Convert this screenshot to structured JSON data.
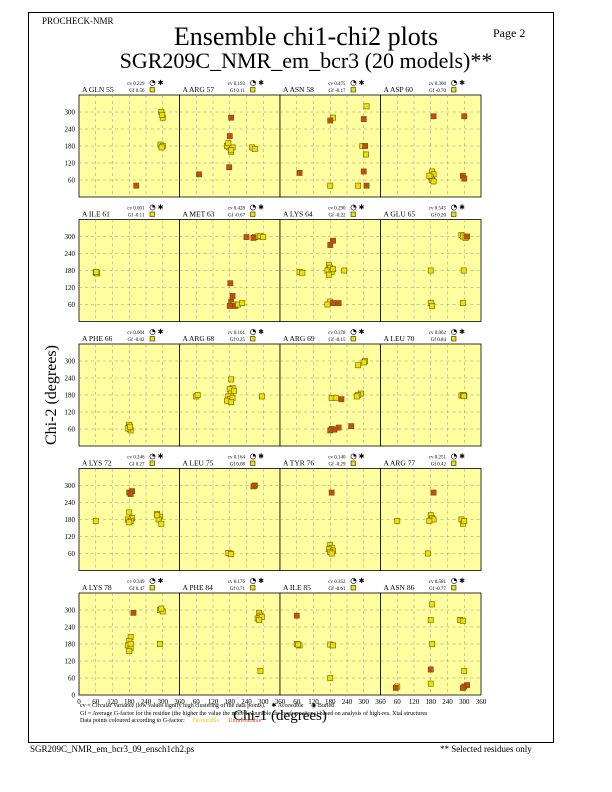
{
  "header": {
    "program": "PROCHECK-NMR",
    "page": "Page  2",
    "title": "Ensemble chi1-chi2 plots",
    "subtitle": "SGR209C_NMR_em_bcr3 (20 models)**"
  },
  "legend": {
    "line1": "cv = Circular Variance (low values signify high clustering of the data points).",
    "accessible": "Accessible",
    "buried": "Buried",
    "line2": "Gf = Average G-factor for the residue (the higher the value the more favourable the conformations) based on analysis of high-res. Xtal structures",
    "line3": "Data points coloured according to G-factor:",
    "favourable": "Favourable",
    "unfavourable": "Unfavourable"
  },
  "footer": {
    "filename": "SGR209C_NMR_em_bcr3_09_ensch1ch2.ps",
    "note": "** Selected residues only"
  },
  "colors": {
    "panel_bg": "#ffff9f",
    "favourable": "#f0e000",
    "unfavourable": "#c84a18",
    "grid": "#909090"
  },
  "chart_data": {
    "type": "scatter",
    "xlabel": "Chi-1 (degrees)",
    "ylabel": "Chi-2 (degrees)",
    "xlim": [
      0,
      360
    ],
    "ylim": [
      0,
      360
    ],
    "xticks": [
      0,
      60,
      120,
      180,
      240,
      300,
      360
    ],
    "yticks": [
      60,
      120,
      180,
      240,
      300
    ],
    "ytick_labels_bottom_row": [
      0,
      60,
      120,
      180,
      240,
      300
    ],
    "panels": [
      {
        "label": "A GLN 55",
        "cv": "cv 0.229",
        "gf": "Gf 0.56",
        "points": [
          [
            295,
            300,
            "f"
          ],
          [
            300,
            280,
            "f"
          ],
          [
            298,
            290,
            "f"
          ],
          [
            292,
            185,
            "f"
          ],
          [
            300,
            180,
            "f"
          ],
          [
            296,
            175,
            "f"
          ],
          [
            205,
            40,
            "u"
          ]
        ]
      },
      {
        "label": "A ARG 57",
        "cv": "cv 0.193",
        "gf": "Gf 0.11",
        "points": [
          [
            185,
            280,
            "u"
          ],
          [
            180,
            215,
            "u"
          ],
          [
            178,
            175,
            "f"
          ],
          [
            185,
            160,
            "f"
          ],
          [
            170,
            180,
            "f"
          ],
          [
            190,
            175,
            "f"
          ],
          [
            175,
            190,
            "f"
          ],
          [
            185,
            165,
            "f"
          ],
          [
            260,
            175,
            "f"
          ],
          [
            270,
            170,
            "f"
          ],
          [
            178,
            105,
            "u"
          ],
          [
            70,
            80,
            "u"
          ]
        ]
      },
      {
        "label": "A ASN 58",
        "cv": "cv 0.475",
        "gf": "Gf -0.17",
        "points": [
          [
            310,
            320,
            "f"
          ],
          [
            300,
            275,
            "u"
          ],
          [
            190,
            280,
            "f"
          ],
          [
            180,
            270,
            "u"
          ],
          [
            308,
            150,
            "f"
          ],
          [
            295,
            180,
            "f"
          ],
          [
            305,
            180,
            "u"
          ],
          [
            300,
            90,
            "u"
          ],
          [
            310,
            40,
            "u"
          ],
          [
            280,
            40,
            "f"
          ],
          [
            180,
            40,
            "f"
          ],
          [
            70,
            85,
            "u"
          ]
        ]
      },
      {
        "label": "A ASP 60",
        "cv": "cv 0.300",
        "gf": "Gf -0.70",
        "points": [
          [
            190,
            285,
            "u"
          ],
          [
            300,
            285,
            "u"
          ],
          [
            185,
            90,
            "f"
          ],
          [
            190,
            80,
            "f"
          ],
          [
            180,
            70,
            "f"
          ],
          [
            185,
            60,
            "f"
          ],
          [
            175,
            75,
            "f"
          ],
          [
            190,
            55,
            "f"
          ],
          [
            295,
            75,
            "u"
          ],
          [
            300,
            65,
            "u"
          ]
        ]
      },
      {
        "label": "A ILE 61",
        "cv": "cv 0.001",
        "gf": "Gf -0.11",
        "points": [
          [
            60,
            172,
            "f"
          ],
          [
            65,
            170,
            "f"
          ],
          [
            62,
            175,
            "f"
          ]
        ]
      },
      {
        "label": "A MET 63",
        "cv": "cv 0.428",
        "gf": "Gf -0.67",
        "points": [
          [
            240,
            298,
            "u"
          ],
          [
            270,
            298,
            "f"
          ],
          [
            280,
            300,
            "f"
          ],
          [
            290,
            302,
            "f"
          ],
          [
            300,
            298,
            "f"
          ],
          [
            265,
            295,
            "u"
          ],
          [
            182,
            135,
            "u"
          ],
          [
            190,
            90,
            "u"
          ],
          [
            185,
            70,
            "u"
          ],
          [
            195,
            60,
            "f"
          ],
          [
            200,
            55,
            "u"
          ],
          [
            210,
            60,
            "f"
          ],
          [
            225,
            65,
            "f"
          ],
          [
            180,
            55,
            "u"
          ]
        ]
      },
      {
        "label": "A LYS 64",
        "cv": "cv 0.290",
        "gf": "Gf -0.22",
        "points": [
          [
            180,
            270,
            "u"
          ],
          [
            190,
            285,
            "u"
          ],
          [
            175,
            200,
            "f"
          ],
          [
            180,
            190,
            "f"
          ],
          [
            170,
            180,
            "f"
          ],
          [
            185,
            175,
            "f"
          ],
          [
            190,
            185,
            "f"
          ],
          [
            175,
            165,
            "f"
          ],
          [
            70,
            175,
            "f"
          ],
          [
            80,
            172,
            "f"
          ],
          [
            180,
            70,
            "f"
          ],
          [
            190,
            65,
            "u"
          ],
          [
            210,
            65,
            "u"
          ],
          [
            170,
            60,
            "f"
          ],
          [
            230,
            180,
            "f"
          ]
        ]
      },
      {
        "label": "A GLU 65",
        "cv": "cv 0.545",
        "gf": "Gf 0.20",
        "points": [
          [
            290,
            305,
            "f"
          ],
          [
            295,
            300,
            "f"
          ],
          [
            305,
            295,
            "f"
          ],
          [
            310,
            300,
            "u"
          ],
          [
            180,
            180,
            "f"
          ],
          [
            298,
            180,
            "f"
          ],
          [
            180,
            65,
            "f"
          ],
          [
            295,
            65,
            "f"
          ],
          [
            185,
            55,
            "f"
          ]
        ]
      },
      {
        "label": "A PHE 66",
        "cv": "cv 0.004",
        "gf": "Gf -0.02",
        "points": [
          [
            180,
            70,
            "f"
          ],
          [
            182,
            60,
            "f"
          ],
          [
            178,
            65,
            "f"
          ],
          [
            185,
            55,
            "f"
          ],
          [
            180,
            75,
            "f"
          ],
          [
            176,
            62,
            "f"
          ],
          [
            183,
            68,
            "f"
          ]
        ]
      },
      {
        "label": "A ARG 68",
        "cv": "cv 0.161",
        "gf": "Gf 0.25",
        "points": [
          [
            185,
            235,
            "f"
          ],
          [
            190,
            205,
            "f"
          ],
          [
            180,
            200,
            "f"
          ],
          [
            185,
            185,
            "f"
          ],
          [
            175,
            175,
            "f"
          ],
          [
            180,
            165,
            "f"
          ],
          [
            190,
            170,
            "f"
          ],
          [
            170,
            160,
            "f"
          ],
          [
            185,
            155,
            "f"
          ],
          [
            60,
            175,
            "f"
          ],
          [
            65,
            180,
            "f"
          ],
          [
            295,
            175,
            "f"
          ],
          [
            195,
            195,
            "f"
          ]
        ]
      },
      {
        "label": "A ARG 69",
        "cv": "cv 0.378",
        "gf": "Gf -0.15",
        "points": [
          [
            305,
            300,
            "f"
          ],
          [
            300,
            295,
            "f"
          ],
          [
            280,
            285,
            "f"
          ],
          [
            290,
            185,
            "f"
          ],
          [
            280,
            180,
            "f"
          ],
          [
            275,
            175,
            "f"
          ],
          [
            185,
            170,
            "f"
          ],
          [
            200,
            170,
            "f"
          ],
          [
            220,
            165,
            "u"
          ],
          [
            185,
            60,
            "u"
          ],
          [
            195,
            58,
            "u"
          ],
          [
            210,
            65,
            "u"
          ],
          [
            255,
            70,
            "u"
          ],
          [
            180,
            55,
            "u"
          ]
        ]
      },
      {
        "label": "A LEU 70",
        "cv": "cv 0.002",
        "gf": "Gf 0.84",
        "points": [
          [
            290,
            178,
            "f"
          ],
          [
            295,
            180,
            "f"
          ],
          [
            300,
            178,
            "f"
          ],
          [
            298,
            176,
            "f"
          ]
        ]
      },
      {
        "label": "A LYS 72",
        "cv": "cv 0.246",
        "gf": "Gf 0.27",
        "points": [
          [
            180,
            275,
            "u"
          ],
          [
            190,
            280,
            "u"
          ],
          [
            185,
            270,
            "u"
          ],
          [
            180,
            205,
            "f"
          ],
          [
            190,
            185,
            "f"
          ],
          [
            175,
            180,
            "f"
          ],
          [
            185,
            175,
            "f"
          ],
          [
            180,
            170,
            "f"
          ],
          [
            280,
            200,
            "f"
          ],
          [
            290,
            190,
            "f"
          ],
          [
            285,
            180,
            "f"
          ],
          [
            295,
            165,
            "f"
          ],
          [
            60,
            175,
            "f"
          ],
          [
            280,
            195,
            "f"
          ]
        ]
      },
      {
        "label": "A LEU 75",
        "cv": "cv 0.164",
        "gf": "Gf 0.08",
        "points": [
          [
            270,
            300,
            "u"
          ],
          [
            265,
            297,
            "u"
          ],
          [
            180,
            60,
            "f"
          ],
          [
            175,
            62,
            "f"
          ],
          [
            185,
            58,
            "f"
          ]
        ]
      },
      {
        "label": "A TYR 76",
        "cv": "cv 0.140",
        "gf": "Gf -0.29",
        "points": [
          [
            185,
            275,
            "u"
          ],
          [
            180,
            90,
            "f"
          ],
          [
            185,
            80,
            "f"
          ],
          [
            175,
            75,
            "f"
          ],
          [
            190,
            70,
            "f"
          ],
          [
            180,
            65,
            "f"
          ],
          [
            185,
            60,
            "f"
          ]
        ]
      },
      {
        "label": "A ARG 77",
        "cv": "cv 0.251",
        "gf": "Gf 0.42",
        "points": [
          [
            190,
            275,
            "u"
          ],
          [
            180,
            195,
            "f"
          ],
          [
            185,
            185,
            "f"
          ],
          [
            190,
            180,
            "f"
          ],
          [
            175,
            175,
            "f"
          ],
          [
            60,
            175,
            "f"
          ],
          [
            290,
            180,
            "f"
          ],
          [
            295,
            165,
            "f"
          ],
          [
            300,
            175,
            "f"
          ],
          [
            170,
            60,
            "f"
          ]
        ]
      },
      {
        "label": "A LYS 78",
        "cv": "cv 0.349",
        "gf": "Gf 0.47",
        "points": [
          [
            195,
            290,
            "u"
          ],
          [
            290,
            300,
            "f"
          ],
          [
            300,
            295,
            "f"
          ],
          [
            295,
            305,
            "f"
          ],
          [
            185,
            205,
            "f"
          ],
          [
            180,
            190,
            "f"
          ],
          [
            175,
            175,
            "f"
          ],
          [
            185,
            165,
            "f"
          ],
          [
            180,
            155,
            "f"
          ],
          [
            290,
            180,
            "f"
          ],
          [
            185,
            180,
            "f"
          ]
        ]
      },
      {
        "label": "A PHE 84",
        "cv": "cv 0.176",
        "gf": "Gf 0.71",
        "points": [
          [
            285,
            290,
            "f"
          ],
          [
            290,
            280,
            "f"
          ],
          [
            280,
            270,
            "f"
          ],
          [
            295,
            275,
            "f"
          ],
          [
            285,
            265,
            "f"
          ],
          [
            290,
            85,
            "f"
          ]
        ]
      },
      {
        "label": "A ILE 85",
        "cv": "cv 0.352",
        "gf": "Gf -0.61",
        "points": [
          [
            60,
            280,
            "u"
          ],
          [
            60,
            180,
            "f"
          ],
          [
            70,
            175,
            "f"
          ],
          [
            65,
            178,
            "f"
          ],
          [
            180,
            178,
            "f"
          ],
          [
            190,
            175,
            "f"
          ],
          [
            180,
            60,
            "f"
          ]
        ]
      },
      {
        "label": "A ASN 86",
        "cv": "cv 0.581",
        "gf": "Gf -0.77",
        "points": [
          [
            185,
            320,
            "f"
          ],
          [
            180,
            265,
            "f"
          ],
          [
            285,
            265,
            "f"
          ],
          [
            295,
            262,
            "f"
          ],
          [
            185,
            180,
            "f"
          ],
          [
            180,
            90,
            "u"
          ],
          [
            300,
            85,
            "f"
          ],
          [
            60,
            30,
            "f"
          ],
          [
            55,
            25,
            "u"
          ],
          [
            300,
            30,
            "u"
          ],
          [
            310,
            35,
            "u"
          ],
          [
            295,
            25,
            "u"
          ],
          [
            180,
            40,
            "f"
          ]
        ]
      }
    ]
  }
}
